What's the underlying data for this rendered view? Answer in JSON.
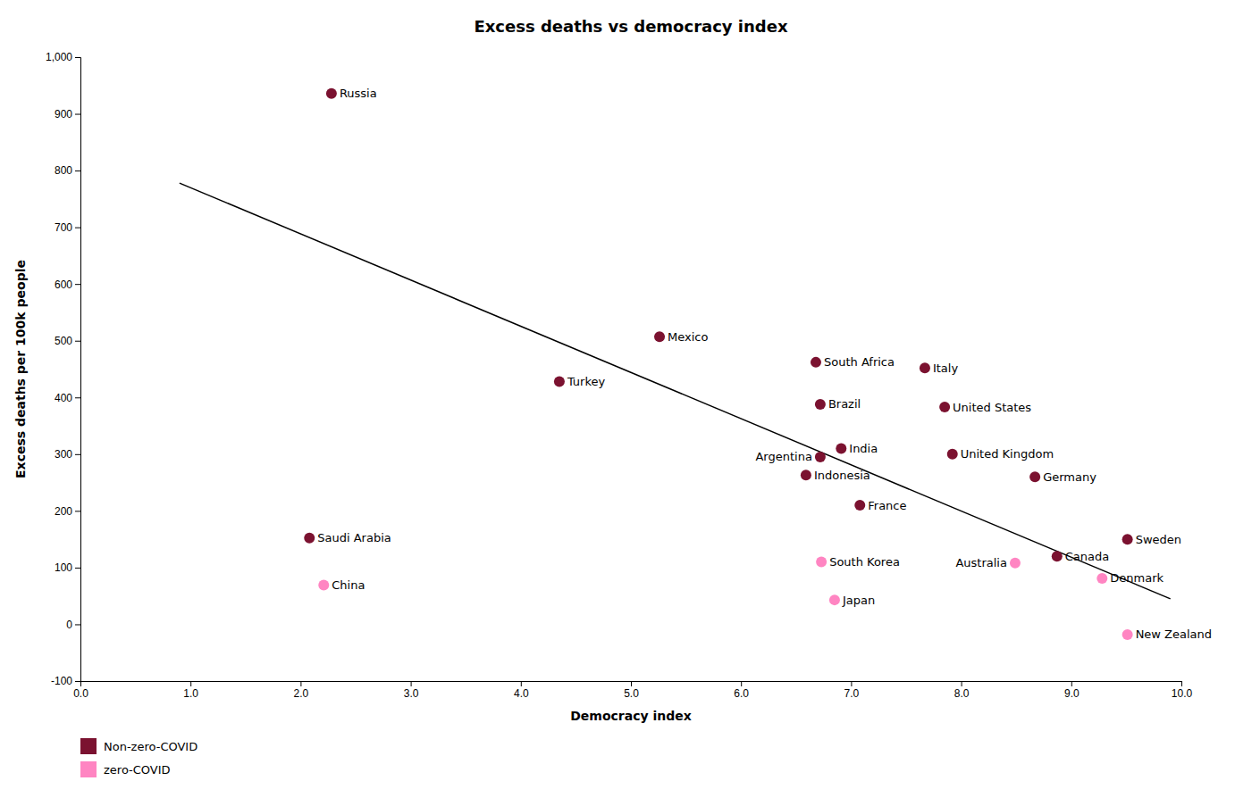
{
  "chart_data": {
    "type": "scatter",
    "title": "Excess deaths vs democracy index",
    "xlabel": "Democracy index",
    "ylabel": "Excess deaths per 100k people",
    "xlim": [
      0.0,
      10.0
    ],
    "ylim": [
      -100,
      1000
    ],
    "xticks": [
      {
        "value": 0.0,
        "label": "0.0"
      },
      {
        "value": 1.0,
        "label": "1.0"
      },
      {
        "value": 2.0,
        "label": "2.0"
      },
      {
        "value": 3.0,
        "label": "3.0"
      },
      {
        "value": 4.0,
        "label": "4.0"
      },
      {
        "value": 5.0,
        "label": "5.0"
      },
      {
        "value": 6.0,
        "label": "6.0"
      },
      {
        "value": 7.0,
        "label": "7.0"
      },
      {
        "value": 8.0,
        "label": "8.0"
      },
      {
        "value": 9.0,
        "label": "9.0"
      },
      {
        "value": 10.0,
        "label": "10.0"
      }
    ],
    "yticks": [
      -100,
      0,
      100,
      200,
      300,
      400,
      500,
      600,
      700,
      800,
      900,
      {
        "value": 1000,
        "label": "1,000"
      }
    ],
    "grid": false,
    "legend": "bottom",
    "series": [
      {
        "name": "Non-zero-COVID",
        "type": "scatter",
        "color": "#7B1230",
        "labels": [
          "Russia",
          "Saudi Arabia",
          "Mexico",
          "Turkey",
          "South Africa",
          "Brazil",
          "Argentina",
          "Indonesia",
          "India",
          "Italy",
          "United States",
          "United Kingdom",
          "France",
          "Germany",
          "Canada",
          "Sweden"
        ],
        "x": [
          2.28,
          2.08,
          5.26,
          4.35,
          6.68,
          6.72,
          6.72,
          6.59,
          6.91,
          7.67,
          7.85,
          7.92,
          7.08,
          8.67,
          8.87,
          9.51
        ],
        "values": [
          936,
          152,
          507,
          428,
          462,
          388,
          295,
          263,
          310,
          452,
          383,
          300,
          210,
          260,
          120,
          150
        ]
      },
      {
        "name": "zero-COVID",
        "type": "scatter",
        "color": "#FF85C2",
        "labels": [
          "China",
          "South Korea",
          "Japan",
          "Australia",
          "Denmark",
          "New Zealand"
        ],
        "x": [
          2.21,
          6.73,
          6.85,
          8.49,
          9.28,
          9.51
        ],
        "values": [
          69,
          110,
          43,
          108,
          81,
          -18
        ]
      },
      {
        "type": "line",
        "color": "#000000",
        "x": [
          0.9,
          9.9
        ],
        "values": [
          778,
          45
        ]
      }
    ]
  }
}
